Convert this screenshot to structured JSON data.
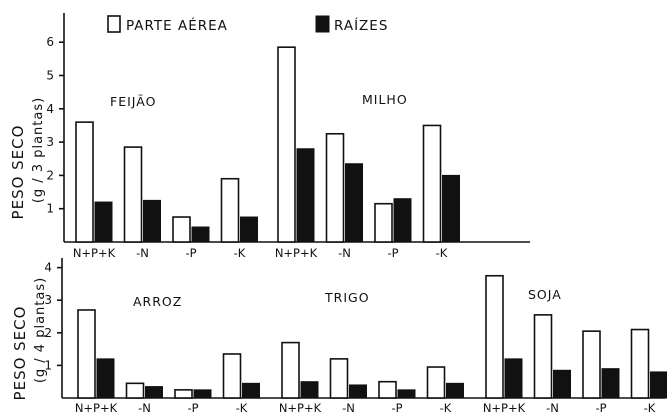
{
  "colors": {
    "parte_aerea": "#ffffff",
    "raizes": "#111111",
    "outline": "#111111"
  },
  "chart_data": [
    {
      "type": "bar",
      "legend": [
        "PARTE AÉREA",
        "RAÍZES"
      ],
      "ylabel": "PESO SECO",
      "ysublabel": "(g / 3 plantas)",
      "ylim": [
        0,
        6.5
      ],
      "yticks": [
        "1",
        "2",
        "3",
        "4",
        "5",
        "6"
      ],
      "groups": [
        {
          "name": "FEIJÃO",
          "categories": [
            "N+P+K",
            "-N",
            "-P",
            "-K"
          ],
          "series": [
            {
              "name": "PARTE AÉREA",
              "values": [
                3.6,
                2.85,
                0.75,
                1.9
              ]
            },
            {
              "name": "RAÍZES",
              "values": [
                1.2,
                1.25,
                0.45,
                0.75
              ]
            }
          ]
        },
        {
          "name": "MILHO",
          "categories": [
            "N+P+K",
            "-N",
            "-P",
            "-K"
          ],
          "series": [
            {
              "name": "PARTE AÉREA",
              "values": [
                5.85,
                3.25,
                1.15,
                3.5
              ]
            },
            {
              "name": "RAÍZES",
              "values": [
                2.8,
                2.35,
                1.3,
                2.0
              ]
            }
          ]
        }
      ]
    },
    {
      "type": "bar",
      "ylabel": "PESO SECO",
      "ysublabel": "(g / 4 plantas)",
      "ylim": [
        0,
        4.3
      ],
      "yticks": [
        "1",
        "2",
        "3",
        "4"
      ],
      "groups": [
        {
          "name": "ARROZ",
          "categories": [
            "N+P+K",
            "-N",
            "-P",
            "-K"
          ],
          "series": [
            {
              "name": "PARTE AÉREA",
              "values": [
                2.7,
                0.45,
                0.25,
                1.35
              ]
            },
            {
              "name": "RAÍZES",
              "values": [
                1.2,
                0.35,
                0.25,
                0.45
              ]
            }
          ]
        },
        {
          "name": "TRIGO",
          "categories": [
            "N+P+K",
            "-N",
            "-P",
            "-K"
          ],
          "series": [
            {
              "name": "PARTE AÉREA",
              "values": [
                1.7,
                1.2,
                0.5,
                0.95
              ]
            },
            {
              "name": "RAÍZES",
              "values": [
                0.5,
                0.4,
                0.25,
                0.45
              ]
            }
          ]
        },
        {
          "name": "SOJA",
          "categories": [
            "N+P+K",
            "-N",
            "-P",
            "-K"
          ],
          "series": [
            {
              "name": "PARTE AÉREA",
              "values": [
                3.75,
                2.55,
                2.05,
                2.1
              ]
            },
            {
              "name": "RAÍZES",
              "values": [
                1.2,
                0.85,
                0.9,
                0.8
              ]
            }
          ]
        }
      ]
    }
  ]
}
